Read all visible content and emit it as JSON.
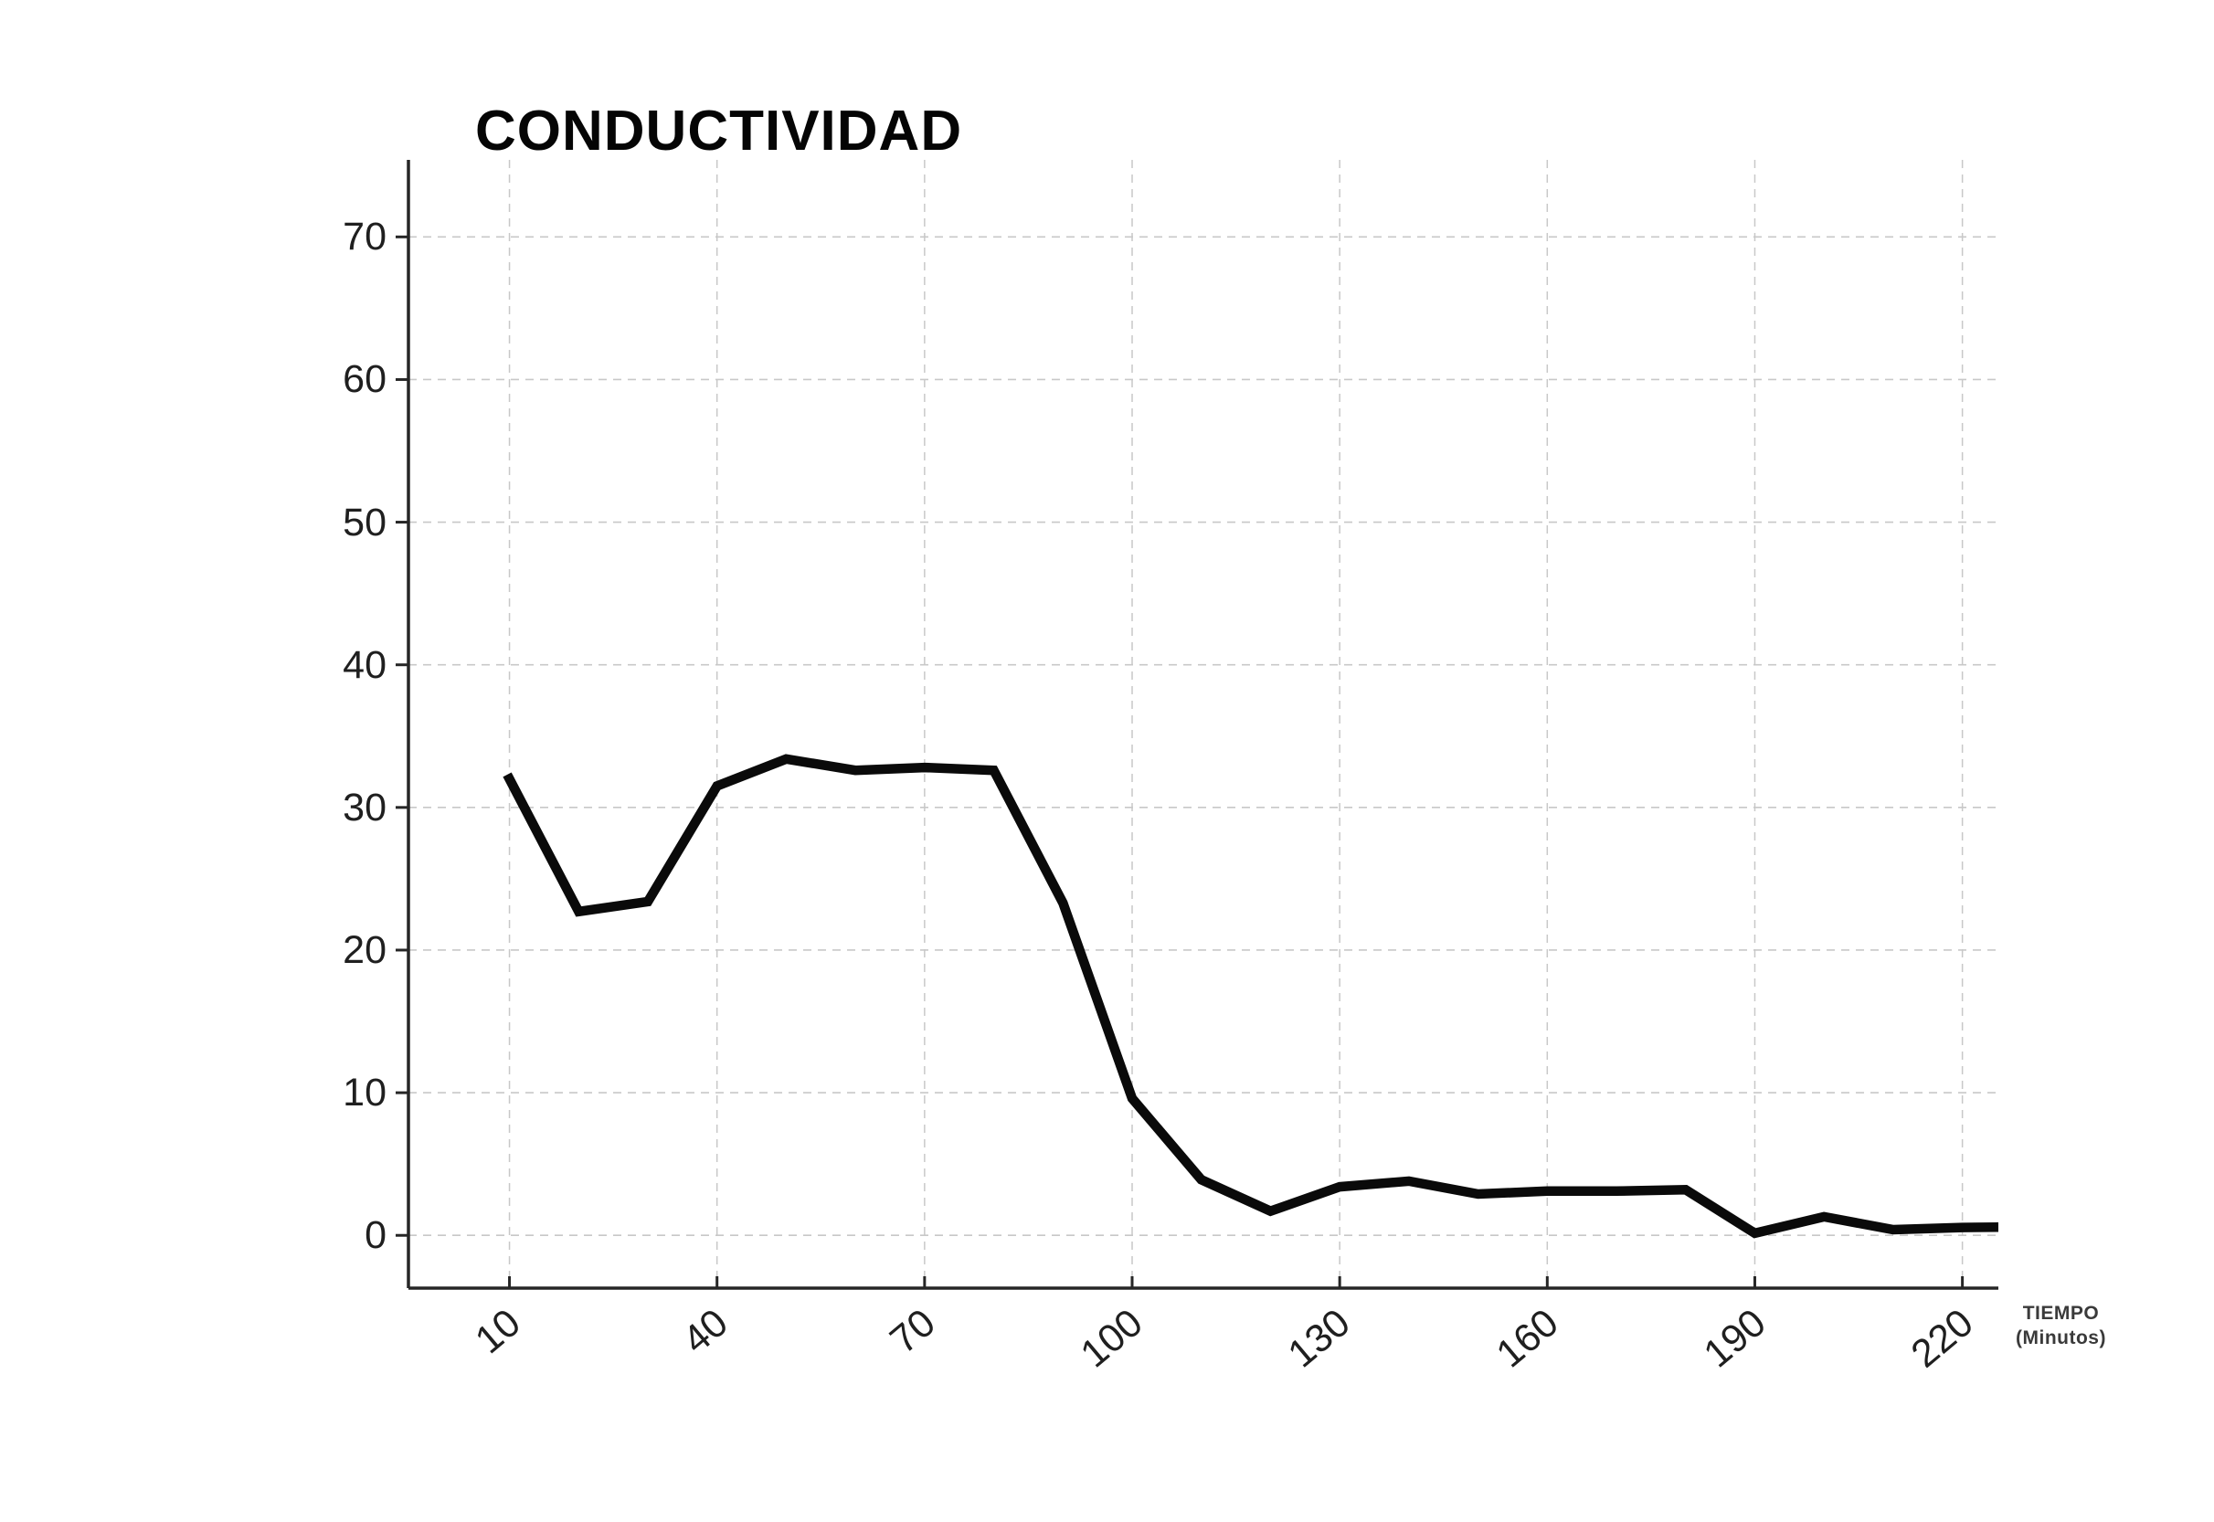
{
  "page": {
    "background": "#ffffff"
  },
  "chart": {
    "title": "CONDUCTIVIDAD",
    "xlabel_line1": "TIEMPO",
    "xlabel_line2": "(Minutos)",
    "colors": {
      "line": "#0a0a0a",
      "axis": "#262626",
      "grid": "#c8c8c8",
      "tick_label": "#1f1f1f",
      "title": "#050505",
      "axis_label": "#3a3a3a",
      "background": "#ffffff"
    }
  },
  "chart_data": {
    "type": "line",
    "title": "CONDUCTIVIDAD",
    "xlabel": "TIEMPO (Minutos)",
    "ylabel": "",
    "series_name": "CONDUCTIVIDAD",
    "x": [
      10,
      20,
      30,
      40,
      50,
      60,
      70,
      80,
      90,
      100,
      110,
      120,
      130,
      140,
      150,
      160,
      170,
      180,
      190,
      200,
      210,
      220,
      230
    ],
    "y": [
      32.0,
      22.7,
      23.4,
      31.5,
      33.4,
      32.6,
      32.8,
      32.6,
      23.3,
      9.6,
      3.9,
      1.7,
      3.4,
      3.8,
      2.9,
      3.1,
      3.1,
      3.2,
      0.15,
      1.3,
      0.4,
      0.55,
      0.6
    ],
    "x_ticks": [
      10,
      40,
      70,
      100,
      130,
      160,
      190,
      220
    ],
    "x_tick_labels": [
      "10",
      "40",
      "70",
      "100",
      "130",
      "160",
      "190",
      "220"
    ],
    "y_ticks": [
      0,
      10,
      20,
      30,
      40,
      50,
      60,
      70
    ],
    "y_tick_labels": [
      "0",
      "10",
      "20",
      "30",
      "40",
      "50",
      "60",
      "70"
    ],
    "xlim": [
      -4.6,
      225.2
    ],
    "ylim": [
      -3.7,
      75.4
    ],
    "grid": "dashed",
    "legend": "none",
    "line_width": 10.5,
    "x_tick_label_rotation_deg": -40
  }
}
